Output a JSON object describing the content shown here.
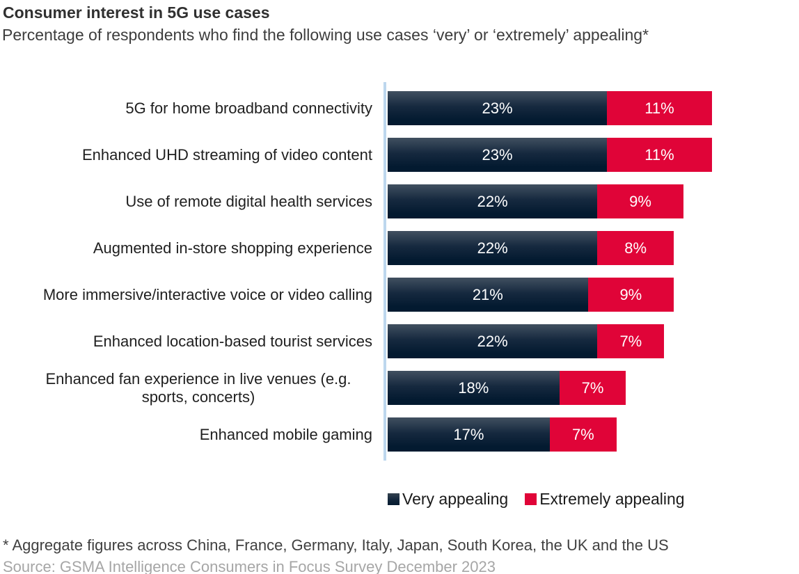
{
  "header": {
    "title": "Consumer interest in 5G use cases",
    "subtitle": "Percentage of respondents who find the following use cases ‘very’ or ‘extremely’ appealing*"
  },
  "chart_data": {
    "type": "bar",
    "orientation": "horizontal",
    "stacked": true,
    "unit": "%",
    "categories": [
      "5G for home broadband connectivity",
      "Enhanced UHD streaming of video content",
      "Use of remote digital health services",
      "Augmented in-store shopping experience",
      "More immersive/interactive voice or video calling",
      "Enhanced location-based tourist services",
      "Enhanced fan experience in live venues (e.g. sports, concerts)",
      "Enhanced mobile gaming"
    ],
    "series": [
      {
        "name": "Very appealing",
        "color": "#0c2339",
        "values": [
          23,
          23,
          22,
          22,
          21,
          22,
          18,
          17
        ]
      },
      {
        "name": "Extremely appealing",
        "color": "#e00438",
        "values": [
          11,
          11,
          9,
          8,
          9,
          7,
          7,
          7
        ]
      }
    ],
    "data_labels": "inside segments, white, percent suffix",
    "axis_line_color": "#bdd7ee",
    "legend_position": "bottom",
    "grid": false,
    "xlim": [
      0,
      34
    ]
  },
  "footnotes": {
    "aggregate": "* Aggregate figures across China, France, Germany, Italy, Japan, South Korea, the UK and the US",
    "source": "Source: GSMA Intelligence Consumers in Focus Survey December 2023"
  }
}
